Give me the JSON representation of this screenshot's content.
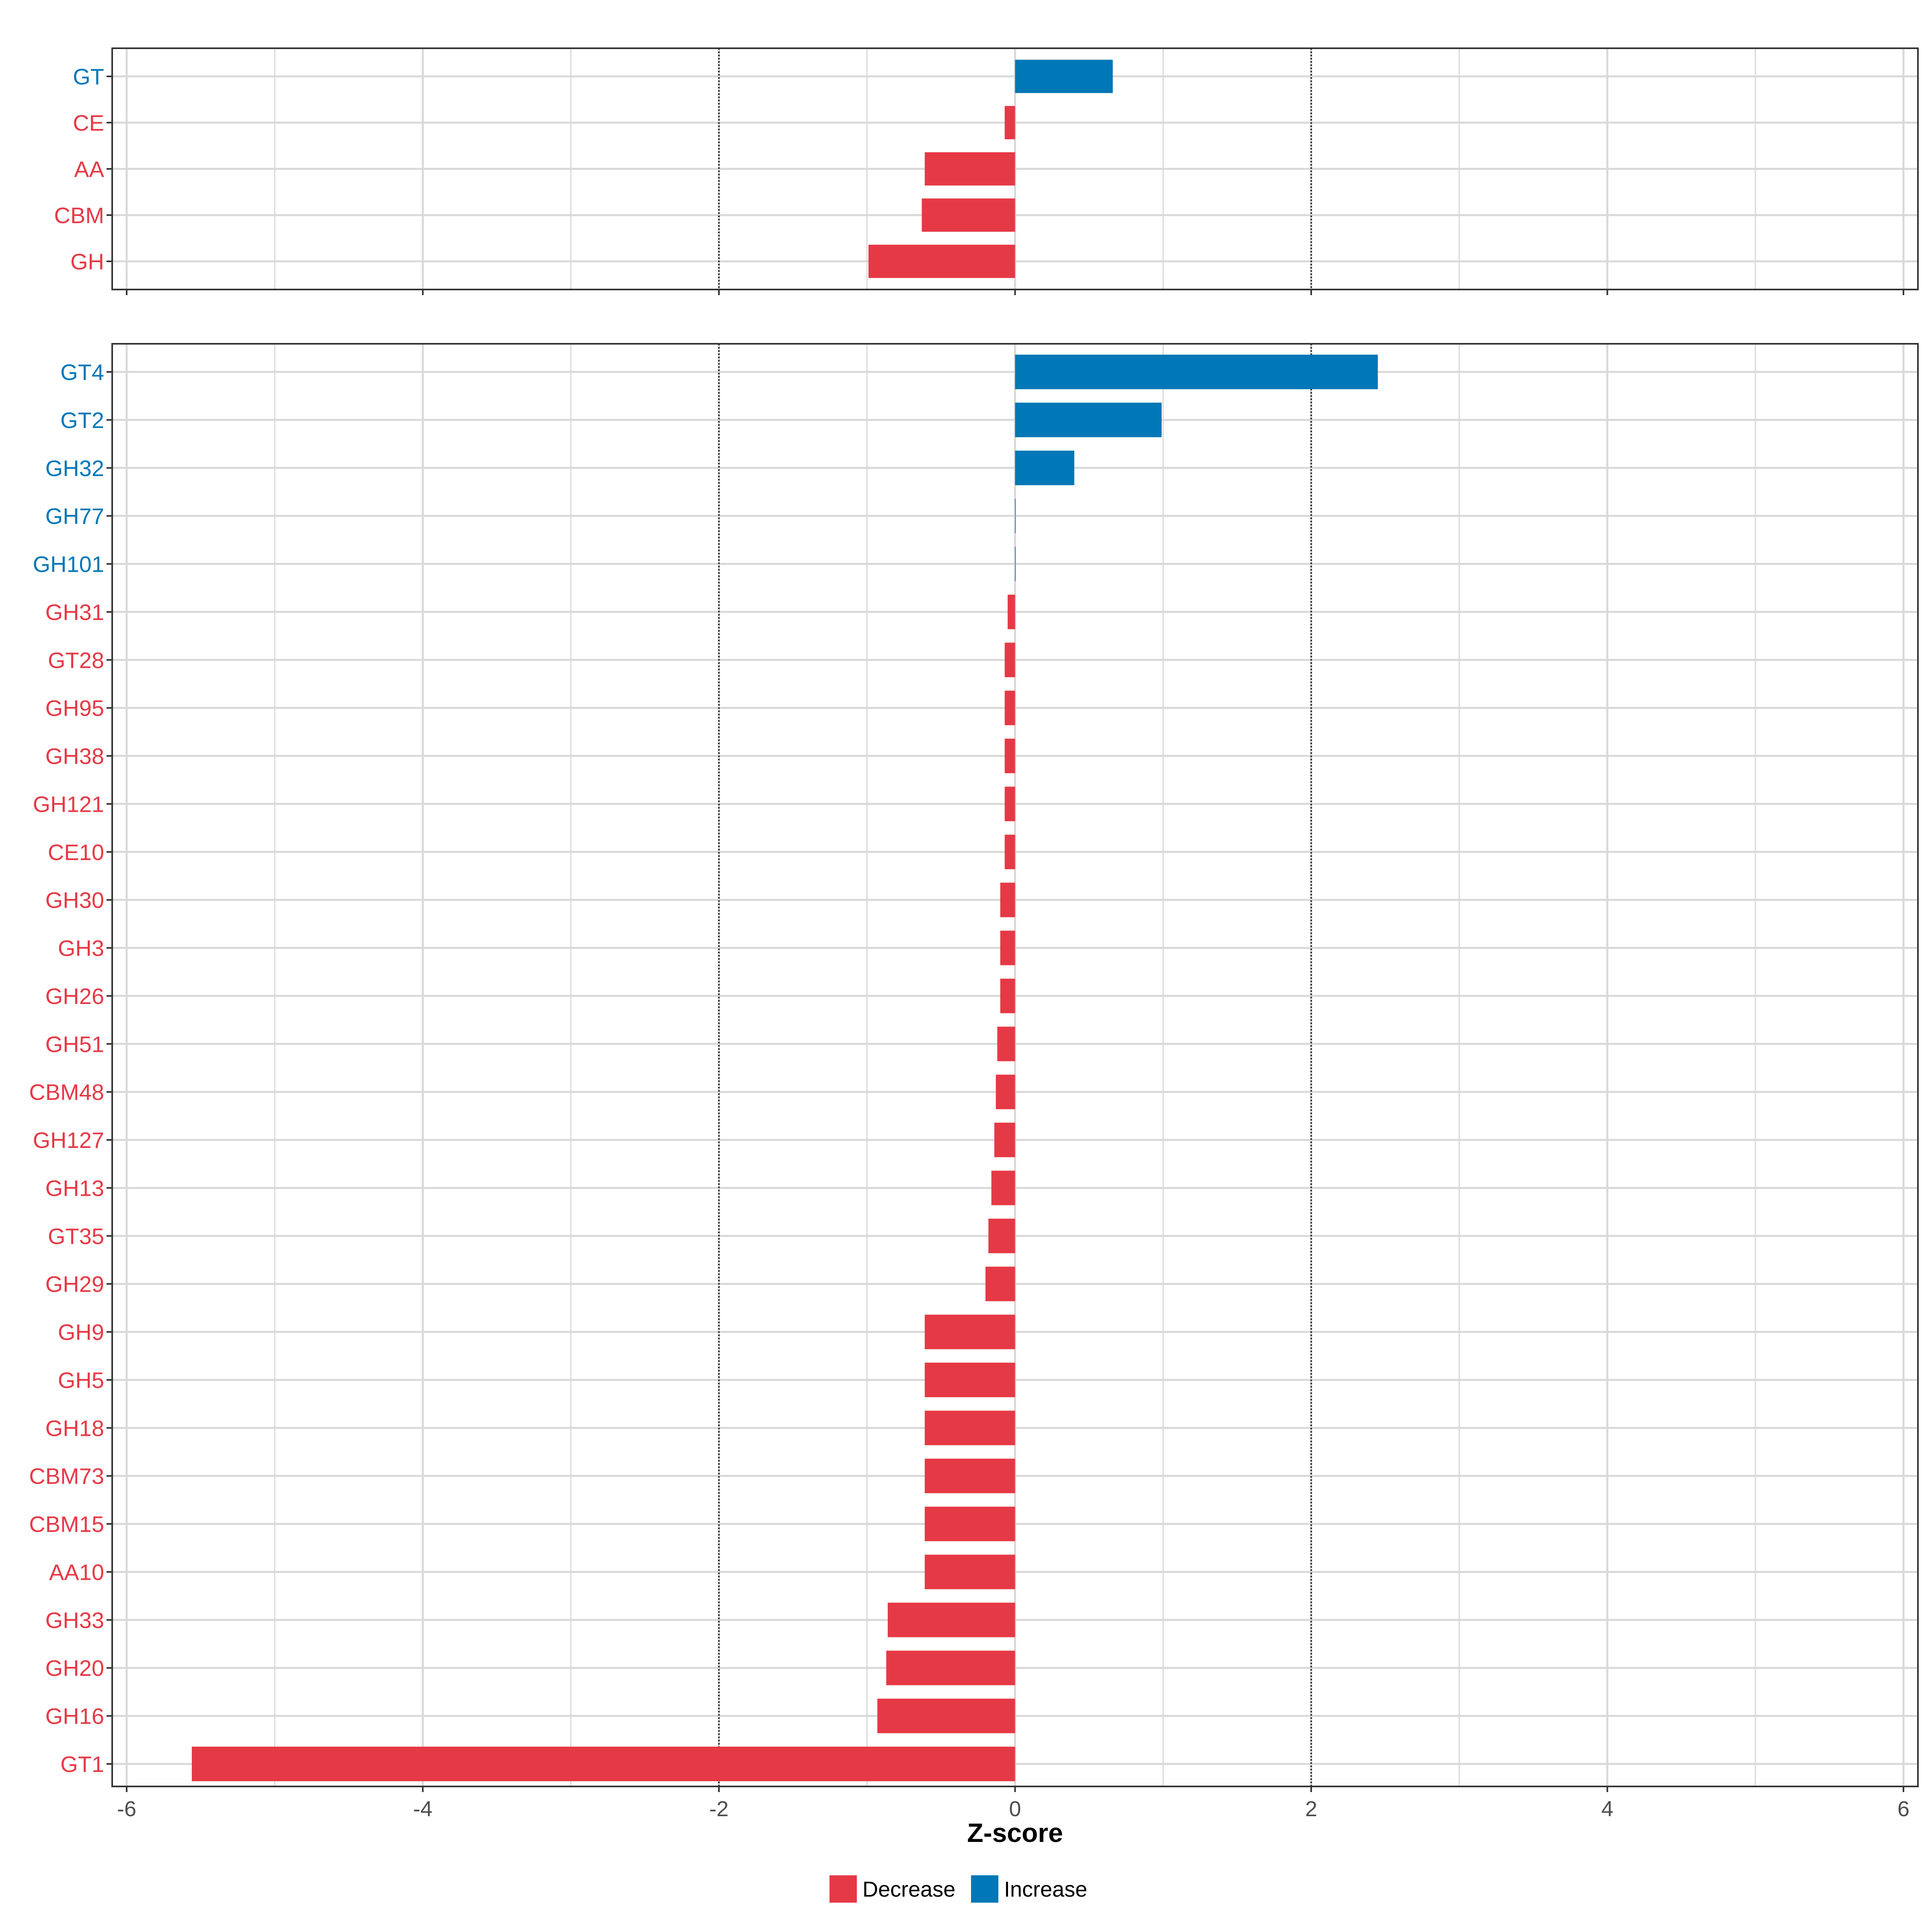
{
  "chart_data": [
    {
      "type": "bar",
      "orientation": "horizontal",
      "panel": "top",
      "categories": [
        "GT",
        "CE",
        "AA",
        "CBM",
        "GH"
      ],
      "values": [
        0.66,
        -0.07,
        -0.61,
        -0.63,
        -0.99
      ],
      "xlim": [
        -6,
        6
      ],
      "reference_lines": [
        -2,
        2
      ],
      "grid": true
    },
    {
      "type": "bar",
      "orientation": "horizontal",
      "panel": "bottom",
      "categories": [
        "GT4",
        "GT2",
        "GH32",
        "GH77",
        "GH101",
        "GH31",
        "GT28",
        "GH95",
        "GH38",
        "GH121",
        "CE10",
        "GH30",
        "GH3",
        "GH26",
        "GH51",
        "CBM48",
        "GH127",
        "GH13",
        "GT35",
        "GH29",
        "GH9",
        "GH5",
        "GH18",
        "CBM73",
        "CBM15",
        "AA10",
        "GH33",
        "GH20",
        "GH16",
        "GT1"
      ],
      "values": [
        2.45,
        0.99,
        0.4,
        0.003,
        0.003,
        -0.05,
        -0.07,
        -0.07,
        -0.07,
        -0.07,
        -0.07,
        -0.1,
        -0.1,
        -0.1,
        -0.12,
        -0.13,
        -0.14,
        -0.16,
        -0.18,
        -0.2,
        -0.61,
        -0.61,
        -0.61,
        -0.61,
        -0.61,
        -0.61,
        -0.86,
        -0.87,
        -0.93,
        -5.56
      ],
      "xlim": [
        -6,
        6
      ],
      "xticks": [
        -6,
        -4,
        -2,
        0,
        2,
        4,
        6
      ],
      "xlabel": "Z-score",
      "reference_lines": [
        -2,
        2
      ],
      "grid": true
    }
  ],
  "colors": {
    "Decrease": "#E63946",
    "Increase": "#0077B6"
  },
  "legend": {
    "placement": "bottom",
    "items": [
      {
        "label": "Decrease",
        "color_key": "Decrease"
      },
      {
        "label": "Increase",
        "color_key": "Increase"
      }
    ]
  }
}
